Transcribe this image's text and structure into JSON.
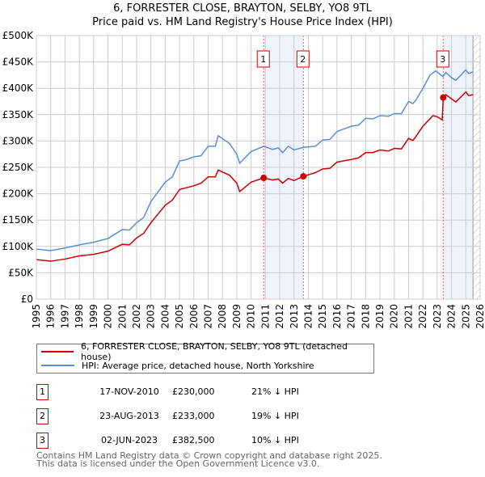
{
  "chart_data": {
    "type": "line",
    "title": "6, FORRESTER CLOSE, BRAYTON, SELBY, YO8 9TL",
    "subtitle": "Price paid vs. HM Land Registry's House Price Index (HPI)",
    "xlim": [
      1995,
      2026
    ],
    "ylim": [
      0,
      500000
    ],
    "x_ticks": [
      "1995",
      "1996",
      "1997",
      "1998",
      "1999",
      "2000",
      "2001",
      "2002",
      "2003",
      "2004",
      "2005",
      "2006",
      "2007",
      "2008",
      "2009",
      "2010",
      "2011",
      "2012",
      "2013",
      "2014",
      "2015",
      "2016",
      "2017",
      "2018",
      "2019",
      "2020",
      "2021",
      "2022",
      "2023",
      "2024",
      "2025",
      "2026"
    ],
    "y_ticks": [
      {
        "v": 0,
        "label": "£0"
      },
      {
        "v": 50000,
        "label": "£50K"
      },
      {
        "v": 100000,
        "label": "£100K"
      },
      {
        "v": 150000,
        "label": "£150K"
      },
      {
        "v": 200000,
        "label": "£200K"
      },
      {
        "v": 250000,
        "label": "£250K"
      },
      {
        "v": 300000,
        "label": "£300K"
      },
      {
        "v": 350000,
        "label": "£350K"
      },
      {
        "v": 400000,
        "label": "£400K"
      },
      {
        "v": 450000,
        "label": "£450K"
      },
      {
        "v": 500000,
        "label": "£500K"
      }
    ],
    "grid": true,
    "data_end": 2025.5,
    "shaded_ranges": [
      [
        2010.88,
        2013.65
      ],
      [
        2023.42,
        2025.5
      ]
    ],
    "series": [
      {
        "name": "6, FORRESTER CLOSE, BRAYTON, SELBY, YO8 9TL (detached house)",
        "color": "#cc0000",
        "points": [
          [
            1995,
            75
          ],
          [
            1996,
            72
          ],
          [
            1997,
            76
          ],
          [
            1998,
            82
          ],
          [
            1999,
            85
          ],
          [
            2000,
            91
          ],
          [
            2001,
            104
          ],
          [
            2001.5,
            103
          ],
          [
            2002,
            116
          ],
          [
            2002.5,
            125
          ],
          [
            2003,
            145
          ],
          [
            2004,
            178
          ],
          [
            2004.5,
            188
          ],
          [
            2005,
            208
          ],
          [
            2006,
            215
          ],
          [
            2006.5,
            220
          ],
          [
            2007,
            232
          ],
          [
            2007.5,
            232
          ],
          [
            2007.7,
            245
          ],
          [
            2008.5,
            235
          ],
          [
            2009,
            220
          ],
          [
            2009.2,
            204
          ],
          [
            2010,
            222
          ],
          [
            2010.88,
            230
          ],
          [
            2011.5,
            226
          ],
          [
            2011.9,
            228
          ],
          [
            2012.2,
            220
          ],
          [
            2012.6,
            229
          ],
          [
            2013,
            225
          ],
          [
            2013.65,
            233
          ],
          [
            2014.5,
            240
          ],
          [
            2015,
            247
          ],
          [
            2015.5,
            248
          ],
          [
            2016,
            260
          ],
          [
            2017,
            265
          ],
          [
            2017.5,
            268
          ],
          [
            2018,
            278
          ],
          [
            2018.5,
            278
          ],
          [
            2019,
            283
          ],
          [
            2019.6,
            281
          ],
          [
            2020,
            286
          ],
          [
            2020.5,
            285
          ],
          [
            2021,
            305
          ],
          [
            2021.3,
            301
          ],
          [
            2021.5,
            308
          ],
          [
            2022,
            328
          ],
          [
            2022.7,
            348
          ],
          [
            2023,
            346
          ],
          [
            2023.35,
            340
          ],
          [
            2023.42,
            382.5
          ],
          [
            2023.6,
            388
          ],
          [
            2024,
            380
          ],
          [
            2024.3,
            374
          ],
          [
            2025,
            393
          ],
          [
            2025.2,
            386
          ],
          [
            2025.5,
            388
          ]
        ]
      },
      {
        "name": "HPI: Average price, detached house, North Yorkshire",
        "color": "#5b8fd4",
        "points": [
          [
            1995,
            95
          ],
          [
            1996,
            92
          ],
          [
            1997,
            97
          ],
          [
            1998,
            103
          ],
          [
            1999,
            108
          ],
          [
            2000,
            115
          ],
          [
            2001,
            132
          ],
          [
            2001.5,
            131
          ],
          [
            2002,
            145
          ],
          [
            2002.5,
            155
          ],
          [
            2003,
            185
          ],
          [
            2004,
            222
          ],
          [
            2004.5,
            232
          ],
          [
            2005,
            262
          ],
          [
            2005.5,
            265
          ],
          [
            2006,
            270
          ],
          [
            2006.5,
            272
          ],
          [
            2007,
            290
          ],
          [
            2007.5,
            290
          ],
          [
            2007.7,
            310
          ],
          [
            2008.5,
            295
          ],
          [
            2009,
            275
          ],
          [
            2009.2,
            258
          ],
          [
            2010,
            280
          ],
          [
            2010.88,
            290
          ],
          [
            2011.5,
            284
          ],
          [
            2011.9,
            287
          ],
          [
            2012.2,
            278
          ],
          [
            2012.6,
            290
          ],
          [
            2013,
            283
          ],
          [
            2013.65,
            288
          ],
          [
            2014.5,
            290
          ],
          [
            2015,
            302
          ],
          [
            2015.5,
            303
          ],
          [
            2016,
            318
          ],
          [
            2017,
            328
          ],
          [
            2017.5,
            330
          ],
          [
            2018,
            343
          ],
          [
            2018.5,
            342
          ],
          [
            2019,
            348
          ],
          [
            2019.6,
            347
          ],
          [
            2020,
            352
          ],
          [
            2020.5,
            352
          ],
          [
            2021,
            375
          ],
          [
            2021.3,
            371
          ],
          [
            2021.5,
            377
          ],
          [
            2022,
            400
          ],
          [
            2022.5,
            425
          ],
          [
            2022.9,
            433
          ],
          [
            2023.4,
            422
          ],
          [
            2023.6,
            430
          ],
          [
            2024,
            420
          ],
          [
            2024.3,
            415
          ],
          [
            2025,
            435
          ],
          [
            2025.2,
            428
          ],
          [
            2025.5,
            431
          ]
        ]
      }
    ],
    "sales": [
      {
        "n": "1",
        "x": 2010.88,
        "y": 230000
      },
      {
        "n": "2",
        "x": 2013.65,
        "y": 233000
      },
      {
        "n": "3",
        "x": 2023.42,
        "y": 382500
      }
    ]
  },
  "legend": {
    "property": "6, FORRESTER CLOSE, BRAYTON, SELBY, YO8 9TL (detached house)",
    "hpi": "HPI: Average price, detached house, North Yorkshire"
  },
  "transactions": [
    {
      "n": "1",
      "date": "17-NOV-2010",
      "price": "£230,000",
      "hpi": "21% ↓ HPI"
    },
    {
      "n": "2",
      "date": "23-AUG-2013",
      "price": "£233,000",
      "hpi": "19% ↓ HPI"
    },
    {
      "n": "3",
      "date": "02-JUN-2023",
      "price": "£382,500",
      "hpi": "10% ↓ HPI"
    }
  ],
  "footer": {
    "line1": "Contains HM Land Registry data © Crown copyright and database right 2025.",
    "line2": "This data is licensed under the Open Government Licence v3.0."
  }
}
